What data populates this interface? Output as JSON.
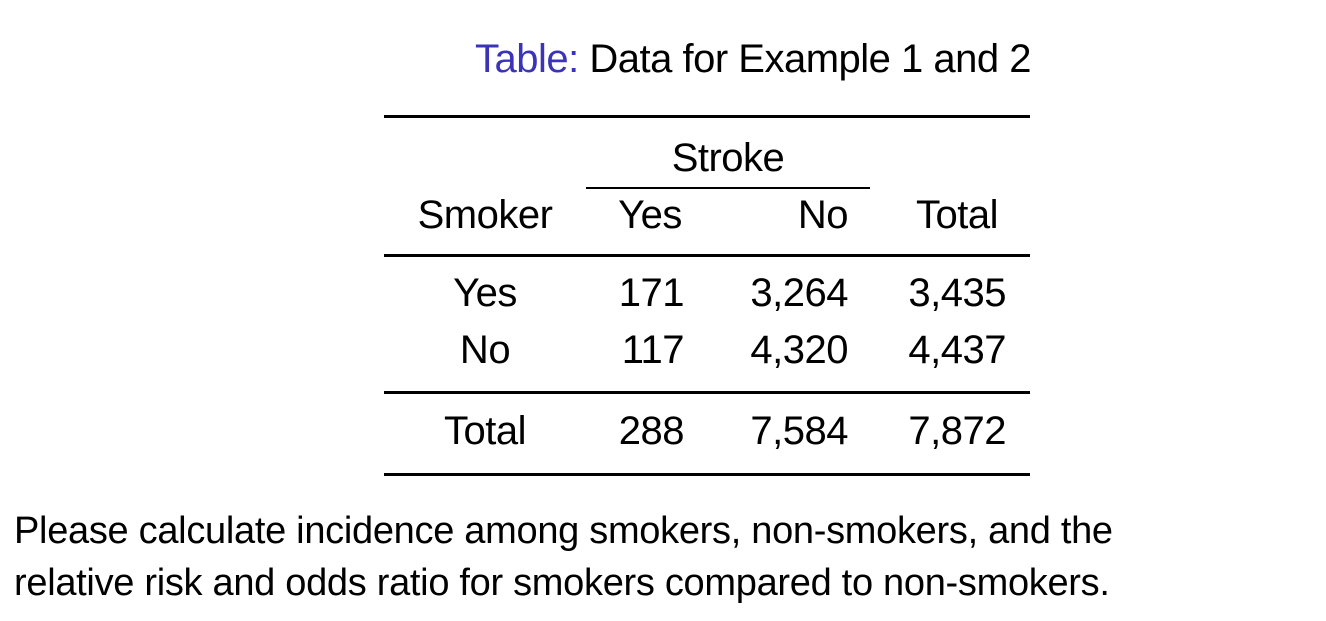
{
  "caption": {
    "label": "Table:",
    "text": "Data for Example 1 and 2"
  },
  "table": {
    "spanner": "Stroke",
    "headers": {
      "row_label": "Smoker",
      "yes": "Yes",
      "no": "No",
      "total": "Total"
    },
    "rows": [
      {
        "label": "Yes",
        "yes": "171",
        "no": "3,264",
        "total": "3,435"
      },
      {
        "label": "No",
        "yes": "117",
        "no": "4,320",
        "total": "4,437"
      }
    ],
    "totals": {
      "label": "Total",
      "yes": "288",
      "no": "7,584",
      "total": "7,872"
    }
  },
  "question": {
    "line1": "Please calculate incidence among smokers, non-smokers, and the",
    "line2": "relative risk and odds ratio for smokers compared to non-smokers."
  },
  "colors": {
    "caption_label": "#3b34b8",
    "text": "#000000"
  }
}
